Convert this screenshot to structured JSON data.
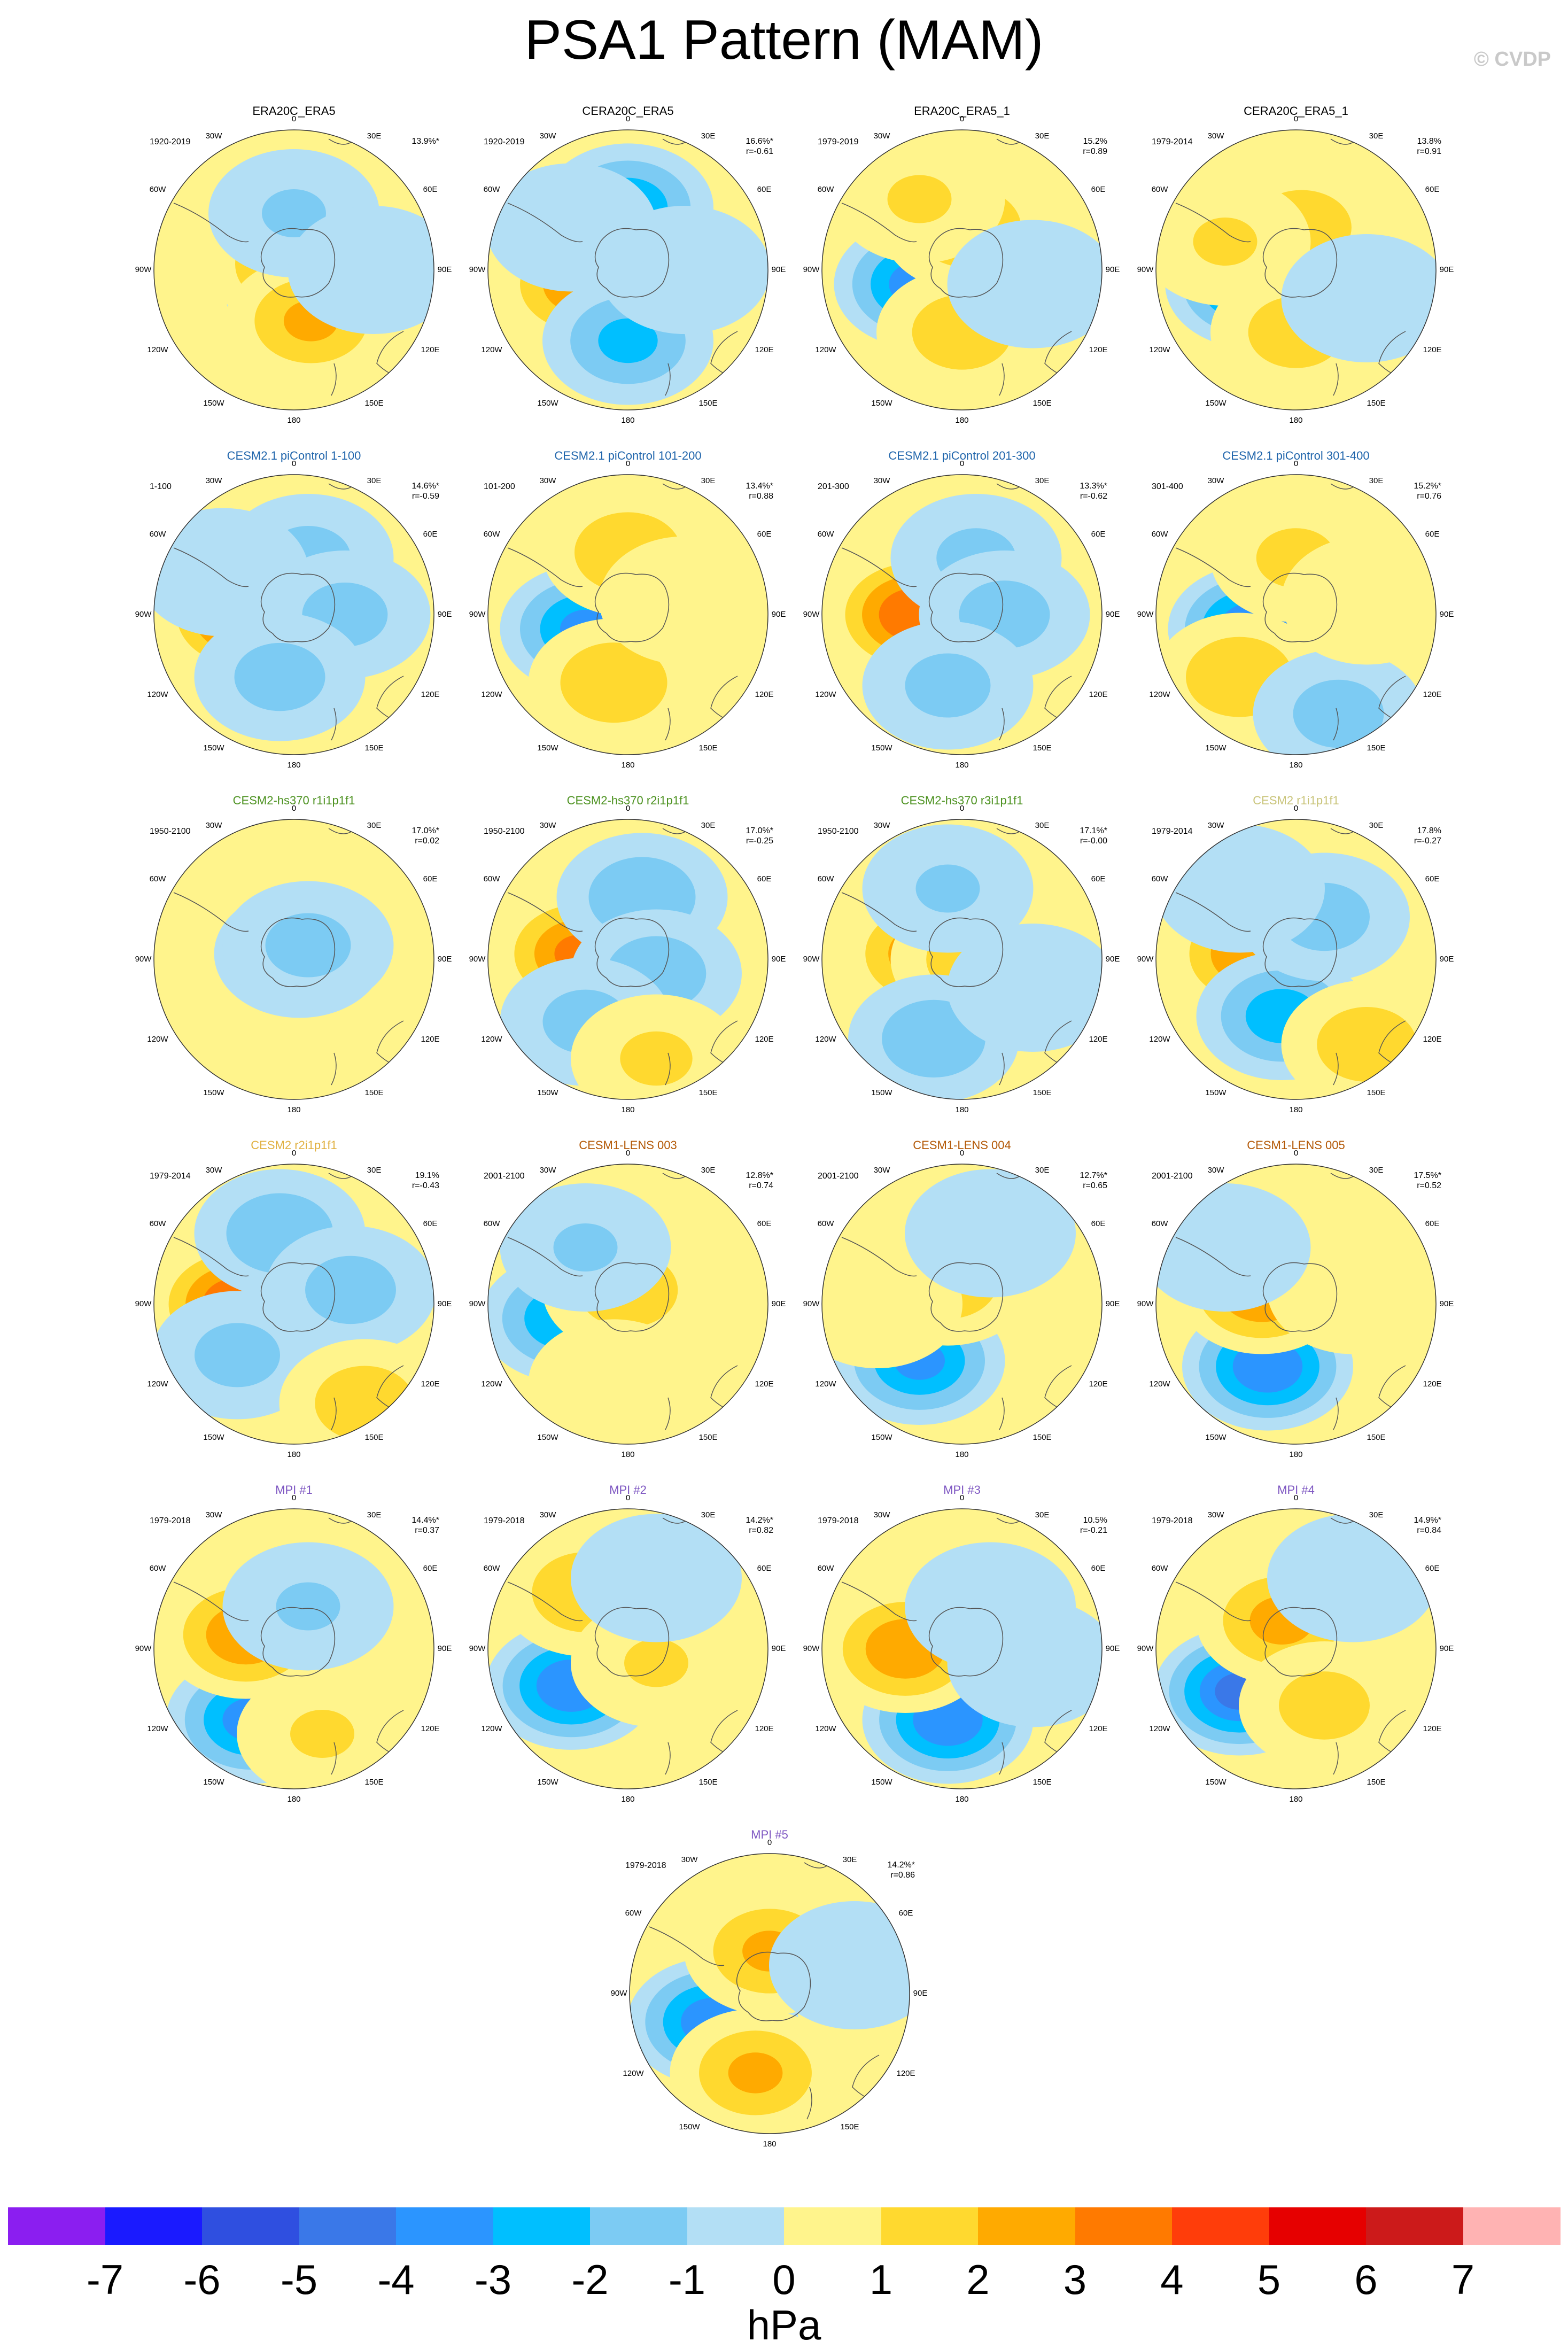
{
  "title": "PSA1 Pattern (MAM)",
  "credit": "© CVDP",
  "map_labels": {
    "n": "0",
    "ne": "30E",
    "nee": "60E",
    "e": "90E",
    "see": "120E",
    "se": "150E",
    "s": "180",
    "sw": "150W",
    "sww": "120W",
    "w": "90W",
    "nww": "60W",
    "nw": "30W"
  },
  "panels": [
    {
      "title": "ERA20C_ERA5",
      "title_color": "#000000",
      "period": "1920-2019",
      "pct": "13.9%*",
      "r": "",
      "pattern": [
        [
          0.56,
          0.58,
          -4.5
        ],
        [
          0.5,
          0.48,
          2.4
        ],
        [
          0.56,
          0.68,
          2.2
        ],
        [
          0.5,
          0.3,
          -1.2
        ],
        [
          0.78,
          0.5,
          -1.0
        ]
      ]
    },
    {
      "title": "CERA20C_ERA5",
      "title_color": "#000000",
      "period": "1920-2019",
      "pct": "16.6%*",
      "r": "r=-0.61",
      "pattern": [
        [
          0.5,
          0.28,
          -2.8
        ],
        [
          0.34,
          0.55,
          2.8
        ],
        [
          0.5,
          0.75,
          -2.3
        ],
        [
          0.7,
          0.5,
          -1.0
        ],
        [
          0.3,
          0.35,
          -1.0
        ]
      ]
    },
    {
      "title": "ERA20C_ERA5_1",
      "title_color": "#000000",
      "period": "1979-2019",
      "pct": "15.2%",
      "r": "r=0.89",
      "pattern": [
        [
          0.35,
          0.55,
          -3.5
        ],
        [
          0.52,
          0.35,
          2.0
        ],
        [
          0.5,
          0.72,
          1.8
        ],
        [
          0.35,
          0.25,
          1.2
        ],
        [
          0.75,
          0.55,
          -1.0
        ]
      ]
    },
    {
      "title": "CERA20C_ERA5_1",
      "title_color": "#000000",
      "period": "1979-2014",
      "pct": "13.8%",
      "r": "r=0.91",
      "pattern": [
        [
          0.34,
          0.55,
          -3.6
        ],
        [
          0.52,
          0.35,
          1.8
        ],
        [
          0.5,
          0.72,
          1.7
        ],
        [
          0.25,
          0.4,
          1.2
        ],
        [
          0.75,
          0.6,
          -1.0
        ]
      ]
    },
    {
      "title": "CESM2.1 piControl 1-100",
      "title_color": "#2166ac",
      "period": "1-100",
      "pct": "14.6%*",
      "r": "r=-0.59",
      "pattern": [
        [
          0.33,
          0.5,
          3.9
        ],
        [
          0.55,
          0.3,
          -1.5
        ],
        [
          0.68,
          0.5,
          -1.5
        ],
        [
          0.45,
          0.72,
          -1.6
        ],
        [
          0.25,
          0.35,
          -1.0
        ]
      ]
    },
    {
      "title": "CESM2.1 piControl 101-200",
      "title_color": "#2166ac",
      "period": "101-200",
      "pct": "13.4%*",
      "r": "r=0.88",
      "pattern": [
        [
          0.35,
          0.55,
          -3.2
        ],
        [
          0.5,
          0.28,
          2.0
        ],
        [
          0.45,
          0.74,
          2.0
        ],
        [
          0.7,
          0.45,
          1.0
        ]
      ]
    },
    {
      "title": "CESM2.1 piControl 201-300",
      "title_color": "#2166ac",
      "period": "201-300",
      "pct": "13.3%*",
      "r": "r=-0.62",
      "pattern": [
        [
          0.33,
          0.5,
          3.8
        ],
        [
          0.55,
          0.3,
          -1.4
        ],
        [
          0.65,
          0.5,
          -1.6
        ],
        [
          0.45,
          0.75,
          -1.5
        ]
      ]
    },
    {
      "title": "CESM2.1 piControl 301-400",
      "title_color": "#2166ac",
      "period": "301-400",
      "pct": "15.2%*",
      "r": "r=0.76",
      "pattern": [
        [
          0.35,
          0.55,
          -3.8
        ],
        [
          0.3,
          0.72,
          2.0
        ],
        [
          0.5,
          0.3,
          1.4
        ],
        [
          0.65,
          0.85,
          -1.6
        ],
        [
          0.75,
          0.45,
          1.0
        ]
      ]
    },
    {
      "title": "CESM2-hs370 r1i1p1f1",
      "title_color": "#4d9221",
      "period": "1950-2100",
      "pct": "17.0%*",
      "r": "r=0.02",
      "pattern": [
        [
          0.52,
          0.48,
          -2.8
        ],
        [
          0.55,
          0.45,
          -1.5
        ]
      ]
    },
    {
      "title": "CESM2-hs370 r2i1p1f1",
      "title_color": "#4d9221",
      "period": "1950-2100",
      "pct": "17.0%*",
      "r": "r=-0.25",
      "pattern": [
        [
          0.33,
          0.48,
          3.2
        ],
        [
          0.55,
          0.28,
          -2.0
        ],
        [
          0.6,
          0.55,
          -1.8
        ],
        [
          0.35,
          0.72,
          -1.5
        ],
        [
          0.6,
          0.85,
          1.3
        ]
      ]
    },
    {
      "title": "CESM2-hs370 r3i1p1f1",
      "title_color": "#4d9221",
      "period": "1950-2100",
      "pct": "17.1%*",
      "r": "r=-0.00",
      "pattern": [
        [
          0.38,
          0.48,
          2.8
        ],
        [
          0.55,
          0.5,
          1.8
        ],
        [
          0.4,
          0.78,
          -1.9
        ],
        [
          0.45,
          0.25,
          -1.2
        ],
        [
          0.75,
          0.6,
          -1.0
        ]
      ]
    },
    {
      "title": "CESM2 r1i1p1f1",
      "title_color": "#c9c47a",
      "period": "1979-2014",
      "pct": "17.8%",
      "r": "r=-0.27",
      "pattern": [
        [
          0.35,
          0.48,
          3.0
        ],
        [
          0.45,
          0.7,
          -2.6
        ],
        [
          0.6,
          0.35,
          -1.6
        ],
        [
          0.75,
          0.8,
          1.8
        ],
        [
          0.3,
          0.25,
          -1.0
        ]
      ]
    },
    {
      "title": "CESM2 r2i1p1f1",
      "title_color": "#e0b040",
      "period": "1979-2014",
      "pct": "19.1%",
      "r": "r=-0.43",
      "pattern": [
        [
          0.3,
          0.5,
          3.8
        ],
        [
          0.45,
          0.25,
          -2.0
        ],
        [
          0.7,
          0.45,
          -1.6
        ],
        [
          0.3,
          0.68,
          -1.5
        ],
        [
          0.75,
          0.85,
          1.8
        ]
      ]
    },
    {
      "title": "CESM1-LENS 003",
      "title_color": "#b35806",
      "period": "2001-2100",
      "pct": "12.8%*",
      "r": "r=0.74",
      "pattern": [
        [
          0.28,
          0.55,
          -2.9
        ],
        [
          0.5,
          0.45,
          1.8
        ],
        [
          0.35,
          0.3,
          -1.2
        ],
        [
          0.45,
          0.78,
          1.0
        ]
      ]
    },
    {
      "title": "CESM1-LENS 004",
      "title_color": "#b35806",
      "period": "2001-2100",
      "pct": "12.7%*",
      "r": "r=0.65",
      "pattern": [
        [
          0.35,
          0.7,
          -3.2
        ],
        [
          0.45,
          0.42,
          1.8
        ],
        [
          0.2,
          0.5,
          1.0
        ],
        [
          0.6,
          0.25,
          -1.0
        ]
      ]
    },
    {
      "title": "CESM1-LENS 005",
      "title_color": "#b35806",
      "period": "2001-2100",
      "pct": "17.5%*",
      "r": "r=0.52",
      "pattern": [
        [
          0.4,
          0.72,
          -3.8
        ],
        [
          0.38,
          0.45,
          3.0
        ],
        [
          0.7,
          0.45,
          1.0
        ],
        [
          0.25,
          0.3,
          -1.0
        ]
      ]
    },
    {
      "title": "MPI #1",
      "title_color": "#7e57c2",
      "period": "1979-2018",
      "pct": "14.4%*",
      "r": "r=0.37",
      "pattern": [
        [
          0.35,
          0.75,
          -3.4
        ],
        [
          0.33,
          0.45,
          2.8
        ],
        [
          0.55,
          0.35,
          -1.2
        ],
        [
          0.6,
          0.8,
          1.2
        ]
      ]
    },
    {
      "title": "MPI #2",
      "title_color": "#7e57c2",
      "period": "1979-2018",
      "pct": "14.2%*",
      "r": "r=0.82",
      "pattern": [
        [
          0.3,
          0.63,
          -3.8
        ],
        [
          0.35,
          0.3,
          2.0
        ],
        [
          0.6,
          0.55,
          1.2
        ],
        [
          0.6,
          0.25,
          -1.0
        ]
      ]
    },
    {
      "title": "MPI #3",
      "title_color": "#7e57c2",
      "period": "1979-2018",
      "pct": "10.5%",
      "r": "r=-0.21",
      "pattern": [
        [
          0.45,
          0.75,
          -3.8
        ],
        [
          0.3,
          0.5,
          2.8
        ],
        [
          0.6,
          0.35,
          -1.0
        ],
        [
          0.75,
          0.55,
          -1.0
        ]
      ]
    },
    {
      "title": "MPI #4",
      "title_color": "#7e57c2",
      "period": "1979-2018",
      "pct": "14.9%*",
      "r": "r=0.84",
      "pattern": [
        [
          0.3,
          0.65,
          -4.2
        ],
        [
          0.45,
          0.4,
          2.4
        ],
        [
          0.6,
          0.7,
          1.6
        ],
        [
          0.7,
          0.25,
          -1.0
        ]
      ]
    },
    {
      "title": "MPI #5",
      "title_color": "#7e57c2",
      "period": "1979-2018",
      "pct": "14.2%*",
      "r": "r=0.86",
      "pattern": [
        [
          0.3,
          0.6,
          -3.6
        ],
        [
          0.5,
          0.35,
          2.2
        ],
        [
          0.45,
          0.78,
          2.2
        ],
        [
          0.8,
          0.4,
          -1.0
        ]
      ]
    }
  ],
  "colorbar": {
    "units": "hPa",
    "labels": [
      "-7",
      "-6",
      "-5",
      "-4",
      "-3",
      "-2",
      "-1",
      "0",
      "1",
      "2",
      "3",
      "4",
      "5",
      "6",
      "7"
    ],
    "colors": [
      "#8b1ef0",
      "#1a1aff",
      "#2f4fe0",
      "#3a78e8",
      "#2b95ff",
      "#00bfff",
      "#7ccbf3",
      "#b3dff5",
      "#fff48c",
      "#ffd92f",
      "#ffaa00",
      "#ff7a00",
      "#ff3d0a",
      "#e60000",
      "#cc1a1a",
      "#ffb3b3"
    ]
  }
}
